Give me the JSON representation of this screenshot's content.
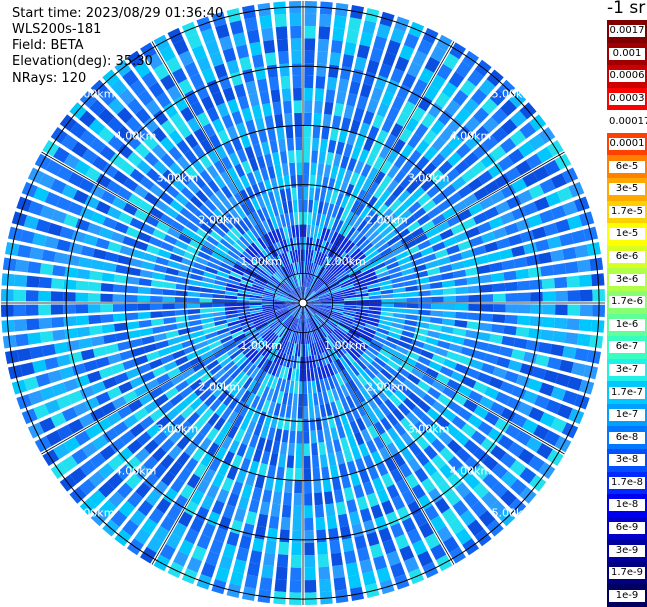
{
  "info": {
    "start_time": "Start time: 2023/08/29 01:36:40",
    "instrument": "WLS200s-181",
    "field": "Field: BETA",
    "elevation": "Elevation(deg): 35.30",
    "nrays": "NRays: 120"
  },
  "chart_data": {
    "type": "heatmap",
    "title": "",
    "projection": "polar PPI",
    "field": "BETA",
    "n_rays": 120,
    "elevation_deg": 35.3,
    "range_rings_km": [
      1,
      2,
      3,
      4,
      5
    ],
    "range_ring_labels": [
      "1.00km",
      "2.00km",
      "3.00km",
      "4.00km",
      "5.00km"
    ],
    "max_range_km": 5.1,
    "colorbar": {
      "unit_label": "-1 sr",
      "labels": [
        "0.0017",
        "0.001",
        "0.0006",
        "0.0003",
        "0.00017",
        "0.0001",
        "6e-5",
        "3e-5",
        "1.7e-5",
        "1e-5",
        "6e-6",
        "3e-6",
        "1.7e-6",
        "1e-6",
        "6e-7",
        "3e-7",
        "1.7e-7",
        "1e-7",
        "6e-8",
        "3e-8",
        "1.7e-8",
        "1e-8",
        "6e-9",
        "3e-9",
        "1.7e-9",
        "1e-9"
      ],
      "colors": [
        "#800000",
        "#a00000",
        "#cc0000",
        "#ff0000",
        "#ffffff",
        "#ff4000",
        "#ff8000",
        "#ffa800",
        "#ffd000",
        "#ffff00",
        "#d8ff20",
        "#b0ff48",
        "#88ff70",
        "#60ff98",
        "#38ffc0",
        "#20f0e8",
        "#00c8ff",
        "#00a0ff",
        "#0078ff",
        "#0050ff",
        "#0028ff",
        "#0000f0",
        "#0000c8",
        "#0000a0",
        "#000080",
        "#000060"
      ]
    }
  }
}
